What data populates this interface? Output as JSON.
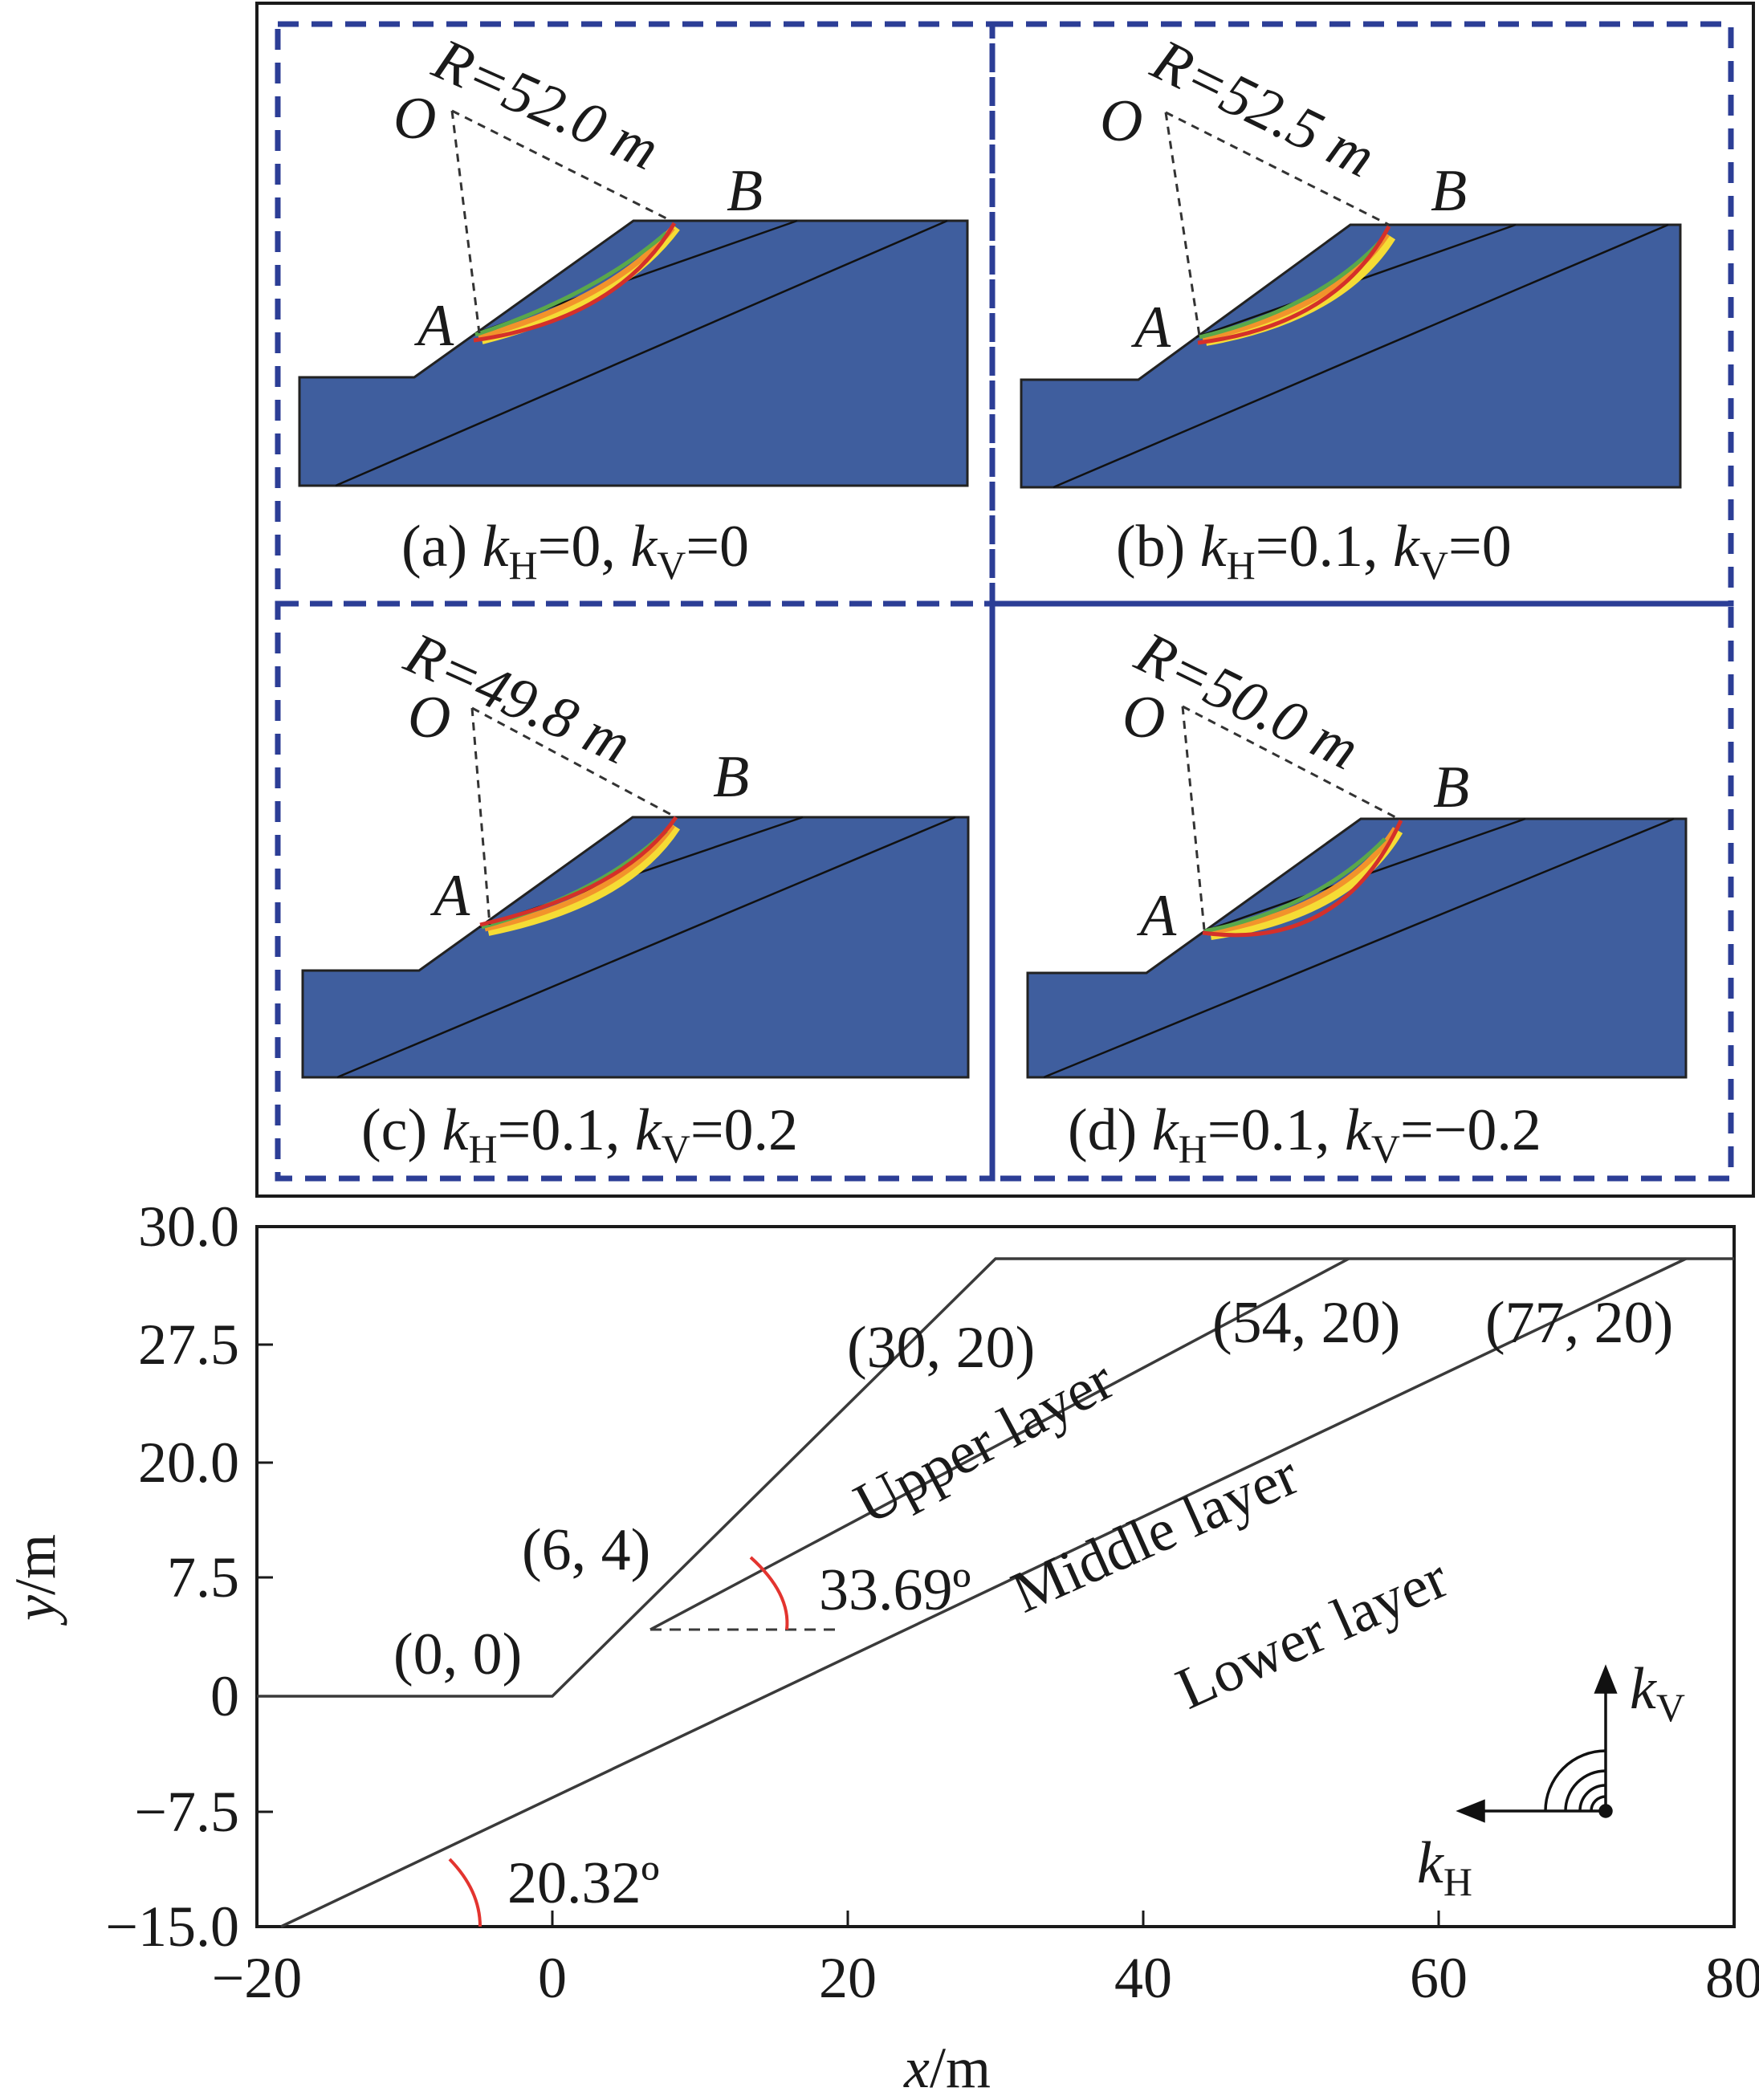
{
  "panels": [
    {
      "id": "a",
      "radius_label": "R=52.0 m",
      "point_o": "O",
      "point_a": "A",
      "point_b": "B",
      "caption": {
        "prefix": "(a) ",
        "k": "k",
        "h_sub": "H",
        "kh_val": "=0, ",
        "v_sub": "V",
        "kv_val": "=0"
      }
    },
    {
      "id": "b",
      "radius_label": "R=52.5 m",
      "point_o": "O",
      "point_a": "A",
      "point_b": "B",
      "caption": {
        "prefix": "(b) ",
        "k": "k",
        "h_sub": "H",
        "kh_val": "=0.1, ",
        "v_sub": "V",
        "kv_val": "=0"
      }
    },
    {
      "id": "c",
      "radius_label": "R=49.8 m",
      "point_o": "O",
      "point_a": "A",
      "point_b": "B",
      "caption": {
        "prefix": "(c) ",
        "k": "k",
        "h_sub": "H",
        "kh_val": "=0.1, ",
        "v_sub": "V",
        "kv_val": "=0.2"
      }
    },
    {
      "id": "d",
      "radius_label": "R=50.0 m",
      "point_o": "O",
      "point_a": "A",
      "point_b": "B",
      "caption": {
        "prefix": "(d) ",
        "k": "k",
        "h_sub": "H",
        "kh_val": "=0.1, ",
        "v_sub": "V",
        "kv_val": "=−0.2"
      }
    }
  ],
  "geometry_plot": {
    "x_ticks": [
      "−20",
      "0",
      "20",
      "40",
      "60",
      "80"
    ],
    "y_ticks": [
      "30.0",
      "27.5",
      "20.0",
      "7.5",
      "0",
      "−7.5",
      "−15.0"
    ],
    "x_axis_var": "x",
    "x_axis_unit": "/m",
    "y_axis_var": "y",
    "y_axis_unit": "/m",
    "point_labels": [
      "(0, 0)",
      "(6, 4)",
      "(30, 20)",
      "(54, 20)",
      "(77, 20)"
    ],
    "layer_labels": [
      "Upper layer",
      "Middle layer",
      "Lower layer"
    ],
    "angle_labels": [
      "33.69º",
      "20.32º"
    ],
    "load_labels": {
      "k": "k",
      "v_sub": "V",
      "h_sub": "H"
    }
  },
  "colors": {
    "slope_fill": "#3f5e9e",
    "dashed_frame": "#2c3e96",
    "slip_red": "#d4302a",
    "slip_orange": "#f2932b",
    "slip_yellow": "#f5dc35",
    "slip_green": "#5aa84a",
    "angle_arc": "#e3342f"
  }
}
